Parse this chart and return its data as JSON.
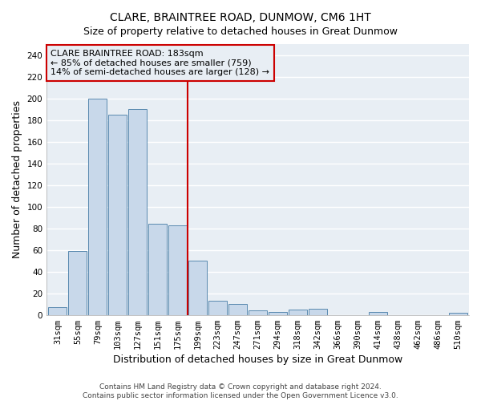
{
  "title": "CLARE, BRAINTREE ROAD, DUNMOW, CM6 1HT",
  "subtitle": "Size of property relative to detached houses in Great Dunmow",
  "xlabel": "Distribution of detached houses by size in Great Dunmow",
  "ylabel": "Number of detached properties",
  "bar_labels": [
    "31sqm",
    "55sqm",
    "79sqm",
    "103sqm",
    "127sqm",
    "151sqm",
    "175sqm",
    "199sqm",
    "223sqm",
    "247sqm",
    "271sqm",
    "294sqm",
    "318sqm",
    "342sqm",
    "366sqm",
    "390sqm",
    "414sqm",
    "438sqm",
    "462sqm",
    "486sqm",
    "510sqm"
  ],
  "bar_values": [
    7,
    59,
    200,
    185,
    190,
    84,
    83,
    50,
    13,
    10,
    4,
    3,
    5,
    6,
    0,
    0,
    3,
    0,
    0,
    0,
    2
  ],
  "bar_color": "#c8d8ea",
  "bar_edge_color": "#5a8ab0",
  "ylim": [
    0,
    250
  ],
  "yticks": [
    0,
    20,
    40,
    60,
    80,
    100,
    120,
    140,
    160,
    180,
    200,
    220,
    240
  ],
  "vline_x": 7.0,
  "vline_color": "#cc0000",
  "annotation_title": "CLARE BRAINTREE ROAD: 183sqm",
  "annotation_line1": "← 85% of detached houses are smaller (759)",
  "annotation_line2": "14% of semi-detached houses are larger (128) →",
  "annotation_box_color": "#cc0000",
  "footer1": "Contains HM Land Registry data © Crown copyright and database right 2024.",
  "footer2": "Contains public sector information licensed under the Open Government Licence v3.0.",
  "background_color": "#ffffff",
  "plot_bg_color": "#e8eef4",
  "grid_color": "#ffffff",
  "title_fontsize": 10,
  "subtitle_fontsize": 9,
  "label_fontsize": 9,
  "tick_fontsize": 7.5,
  "footer_fontsize": 6.5,
  "annotation_fontsize": 8
}
